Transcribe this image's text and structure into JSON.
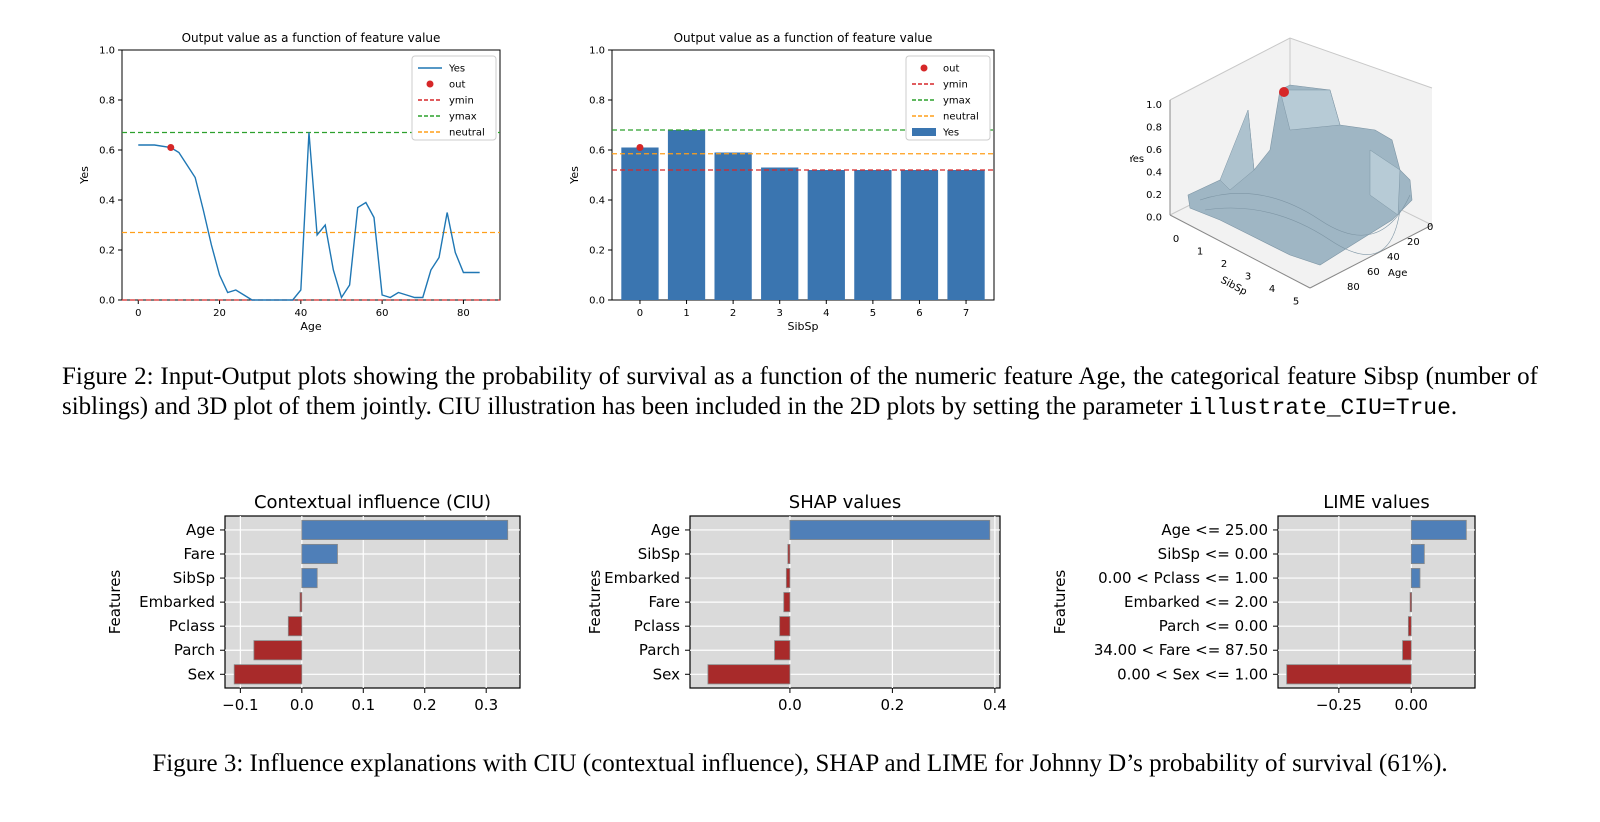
{
  "charts": [
    {
      "type": "line",
      "title": "Output value as a function of feature value",
      "xlabel": "Age",
      "ylabel": "Yes",
      "xlim": [
        -4,
        89
      ],
      "ylim": [
        0,
        1
      ],
      "xticks": [
        "0",
        "20",
        "40",
        "60",
        "80"
      ],
      "yticks": [
        "0.0",
        "0.2",
        "0.4",
        "0.6",
        "0.8",
        "1.0"
      ],
      "legend": [
        "Yes",
        "out",
        "ymin",
        "ymax",
        "neutral"
      ],
      "series": [
        {
          "name": "Yes",
          "x": [
            0,
            4,
            8,
            10,
            12,
            14,
            16,
            18,
            20,
            22,
            24,
            26,
            28,
            30,
            32,
            35,
            38,
            40,
            42,
            44,
            46,
            48,
            50,
            52,
            54,
            56,
            58,
            60,
            62,
            64,
            66,
            68,
            70,
            72,
            74,
            76,
            78,
            80,
            82,
            84
          ],
          "y": [
            0.62,
            0.62,
            0.61,
            0.59,
            0.54,
            0.49,
            0.36,
            0.22,
            0.1,
            0.03,
            0.04,
            0.02,
            0.0,
            0.0,
            0.0,
            0.0,
            0.0,
            0.04,
            0.67,
            0.26,
            0.3,
            0.12,
            0.01,
            0.06,
            0.37,
            0.39,
            0.33,
            0.02,
            0.01,
            0.03,
            0.02,
            0.01,
            0.01,
            0.12,
            0.17,
            0.35,
            0.19,
            0.11,
            0.11,
            0.11
          ]
        }
      ],
      "out": {
        "x": 8,
        "y": 0.61
      },
      "ymin": 0.0,
      "ymax": 0.67,
      "neutral": 0.27
    },
    {
      "type": "bar",
      "title": "Output value as a function of feature value",
      "xlabel": "SibSp",
      "ylabel": "Yes",
      "ylim": [
        0,
        1
      ],
      "categories": [
        "0",
        "1",
        "2",
        "3",
        "4",
        "5",
        "6",
        "7"
      ],
      "yticks": [
        "0.0",
        "0.2",
        "0.4",
        "0.6",
        "0.8",
        "1.0"
      ],
      "legend": [
        "out",
        "ymin",
        "ymax",
        "neutral",
        "Yes"
      ],
      "values": [
        0.61,
        0.68,
        0.59,
        0.53,
        0.52,
        0.52,
        0.52,
        0.52
      ],
      "out": {
        "x": 0,
        "y": 0.61
      },
      "ymin": 0.52,
      "ymax": 0.68,
      "neutral": 0.585
    },
    {
      "type": "surface3d",
      "zlabel": "Yes",
      "xlabel": "SibSp",
      "ylabel": "Age",
      "zticks": [
        "1.0",
        "0.8",
        "0.6",
        "0.4",
        "0.2",
        "0.0"
      ],
      "xticks": [
        "0",
        "1",
        "2",
        "3",
        "4",
        "5"
      ],
      "yticks": [
        "0",
        "20",
        "40",
        "60",
        "80"
      ]
    },
    {
      "type": "bar",
      "orientation": "horizontal",
      "title": "Contextual influence (CIU)",
      "ylabel": "Features",
      "xlim": [
        -0.125,
        0.355
      ],
      "xticks": [
        -0.1,
        0.0,
        0.1,
        0.2,
        0.3
      ],
      "xtick_labels": [
        "−0.1",
        "0.0",
        "0.1",
        "0.2",
        "0.3"
      ],
      "categories": [
        "Age",
        "Fare",
        "SibSp",
        "Embarked",
        "Pclass",
        "Parch",
        "Sex"
      ],
      "values": [
        0.335,
        0.058,
        0.025,
        -0.003,
        -0.022,
        -0.078,
        -0.11
      ]
    },
    {
      "type": "bar",
      "orientation": "horizontal",
      "title": "SHAP values",
      "ylabel": "Features",
      "xlim": [
        -0.195,
        0.41
      ],
      "xticks": [
        0.0,
        0.2,
        0.4
      ],
      "xtick_labels": [
        "0.0",
        "0.2",
        "0.4"
      ],
      "categories": [
        "Age",
        "SibSp",
        "Embarked",
        "Fare",
        "Pclass",
        "Parch",
        "Sex"
      ],
      "values": [
        0.39,
        -0.004,
        -0.007,
        -0.012,
        -0.02,
        -0.03,
        -0.16
      ]
    },
    {
      "type": "bar",
      "orientation": "horizontal",
      "title": "LIME values",
      "ylabel": "Features",
      "xlim": [
        -0.46,
        0.22
      ],
      "xticks": [
        -0.25,
        0.0
      ],
      "xtick_labels": [
        "−0.25",
        "0.00"
      ],
      "categories": [
        "Age <= 25.00",
        "SibSp <= 0.00",
        "0.00 < Pclass <= 1.00",
        "Embarked <= 2.00",
        "Parch <= 0.00",
        "34.00 < Fare <= 87.50",
        "0.00 < Sex <= 1.00"
      ],
      "values": [
        0.19,
        0.045,
        0.03,
        -0.004,
        -0.01,
        -0.03,
        -0.43
      ]
    }
  ],
  "colors": {
    "line": "#1f77b4",
    "bar2d": "#3a75b0",
    "out": "#d62728",
    "ymin": "#d62728",
    "ymax": "#2ca02c",
    "neutral": "#ff9f1a",
    "pos": "#4f7fb8",
    "neg": "#a82a2a",
    "panel_bg": "#dadada",
    "surface": "#9fb6c4"
  },
  "captions": {
    "fig2": "Figure 2: Input-Output plots showing the probability of survival as a function of the numeric feature Age, the categorical feature Sibsp (number of siblings) and 3D plot of them jointly. CIU illustration has been included in the 2D plots by setting the parameter",
    "fig2_code": "illustrate_CIU=True",
    "fig2_end": ".",
    "fig3": "Figure 3: Influence explanations with CIU (contextual influence), SHAP and LIME for Johnny D’s probability of survival (61%)."
  }
}
